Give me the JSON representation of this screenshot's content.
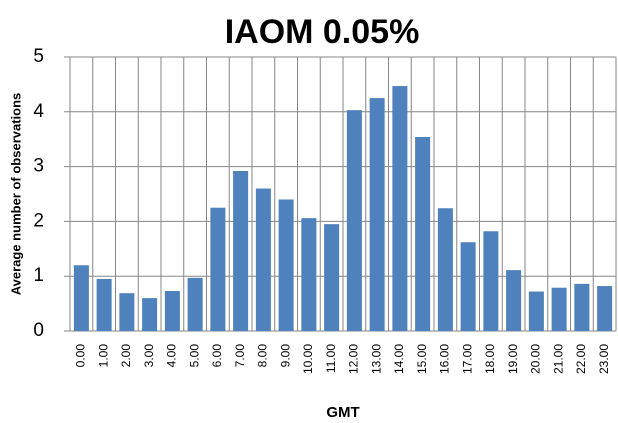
{
  "chart_data": {
    "type": "bar",
    "title": "IAOM 0.05%",
    "x_label": "GMT",
    "y_label": "Average number of observations",
    "categories": [
      "0.00",
      "1.00",
      "2.00",
      "3.00",
      "4.00",
      "5.00",
      "6.00",
      "7.00",
      "8.00",
      "9.00",
      "10.00",
      "11.00",
      "12.00",
      "13.00",
      "14.00",
      "15.00",
      "16.00",
      "17.00",
      "18.00",
      "19.00",
      "20.00",
      "21.00",
      "22.00",
      "23.00"
    ],
    "values": [
      1.2,
      0.95,
      0.69,
      0.6,
      0.73,
      0.97,
      2.25,
      2.92,
      2.6,
      2.4,
      2.06,
      1.95,
      4.03,
      4.25,
      4.47,
      3.54,
      2.24,
      1.62,
      1.82,
      1.11,
      0.72,
      0.79,
      0.86,
      0.82
    ],
    "color": "#4f81bd",
    "ylim": [
      0,
      5
    ],
    "yticks": [
      0,
      1,
      2,
      3,
      4,
      5
    ],
    "grid": true
  }
}
